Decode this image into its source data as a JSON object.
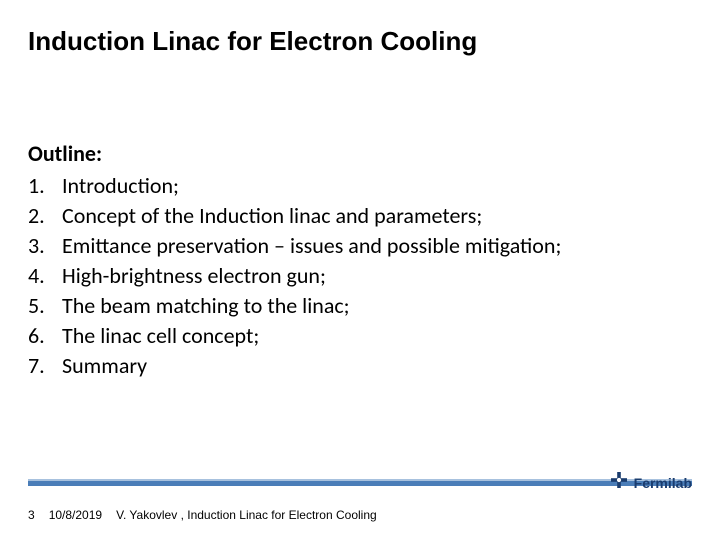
{
  "title": "Induction Linac for Electron Cooling",
  "title_fontsize": 26,
  "title_color": "#000000",
  "outline": {
    "heading": "Outline:",
    "heading_fontsize": 22,
    "item_fontsize": 22,
    "line_height": 30,
    "items": [
      {
        "num": "1.",
        "text": "Introduction;"
      },
      {
        "num": "2.",
        "text": "Concept of the Induction linac and parameters;"
      },
      {
        "num": "3.",
        "text": "Emittance preservation – issues and possible mitigation;"
      },
      {
        "num": "4.",
        "text": "High-brightness electron gun;"
      },
      {
        "num": "5.",
        "text": "The beam matching to the linac;"
      },
      {
        "num": "6.",
        "text": "The linac cell concept;"
      },
      {
        "num": "7.",
        "text": "Summary"
      }
    ]
  },
  "footer": {
    "page_number": "3",
    "date": "10/8/2019",
    "text": "V. Yakovlev ,  Induction Linac for Electron Cooling",
    "fontsize": 12,
    "bar_color": "#4a7db8",
    "bar_top_color": "#a7c1de"
  },
  "logo": {
    "word": "Fermilab",
    "word_fontsize": 14,
    "icon_color": "#1a3c6e",
    "word_color": "#1a3c6e"
  },
  "colors": {
    "background": "#ffffff",
    "text": "#000000"
  }
}
